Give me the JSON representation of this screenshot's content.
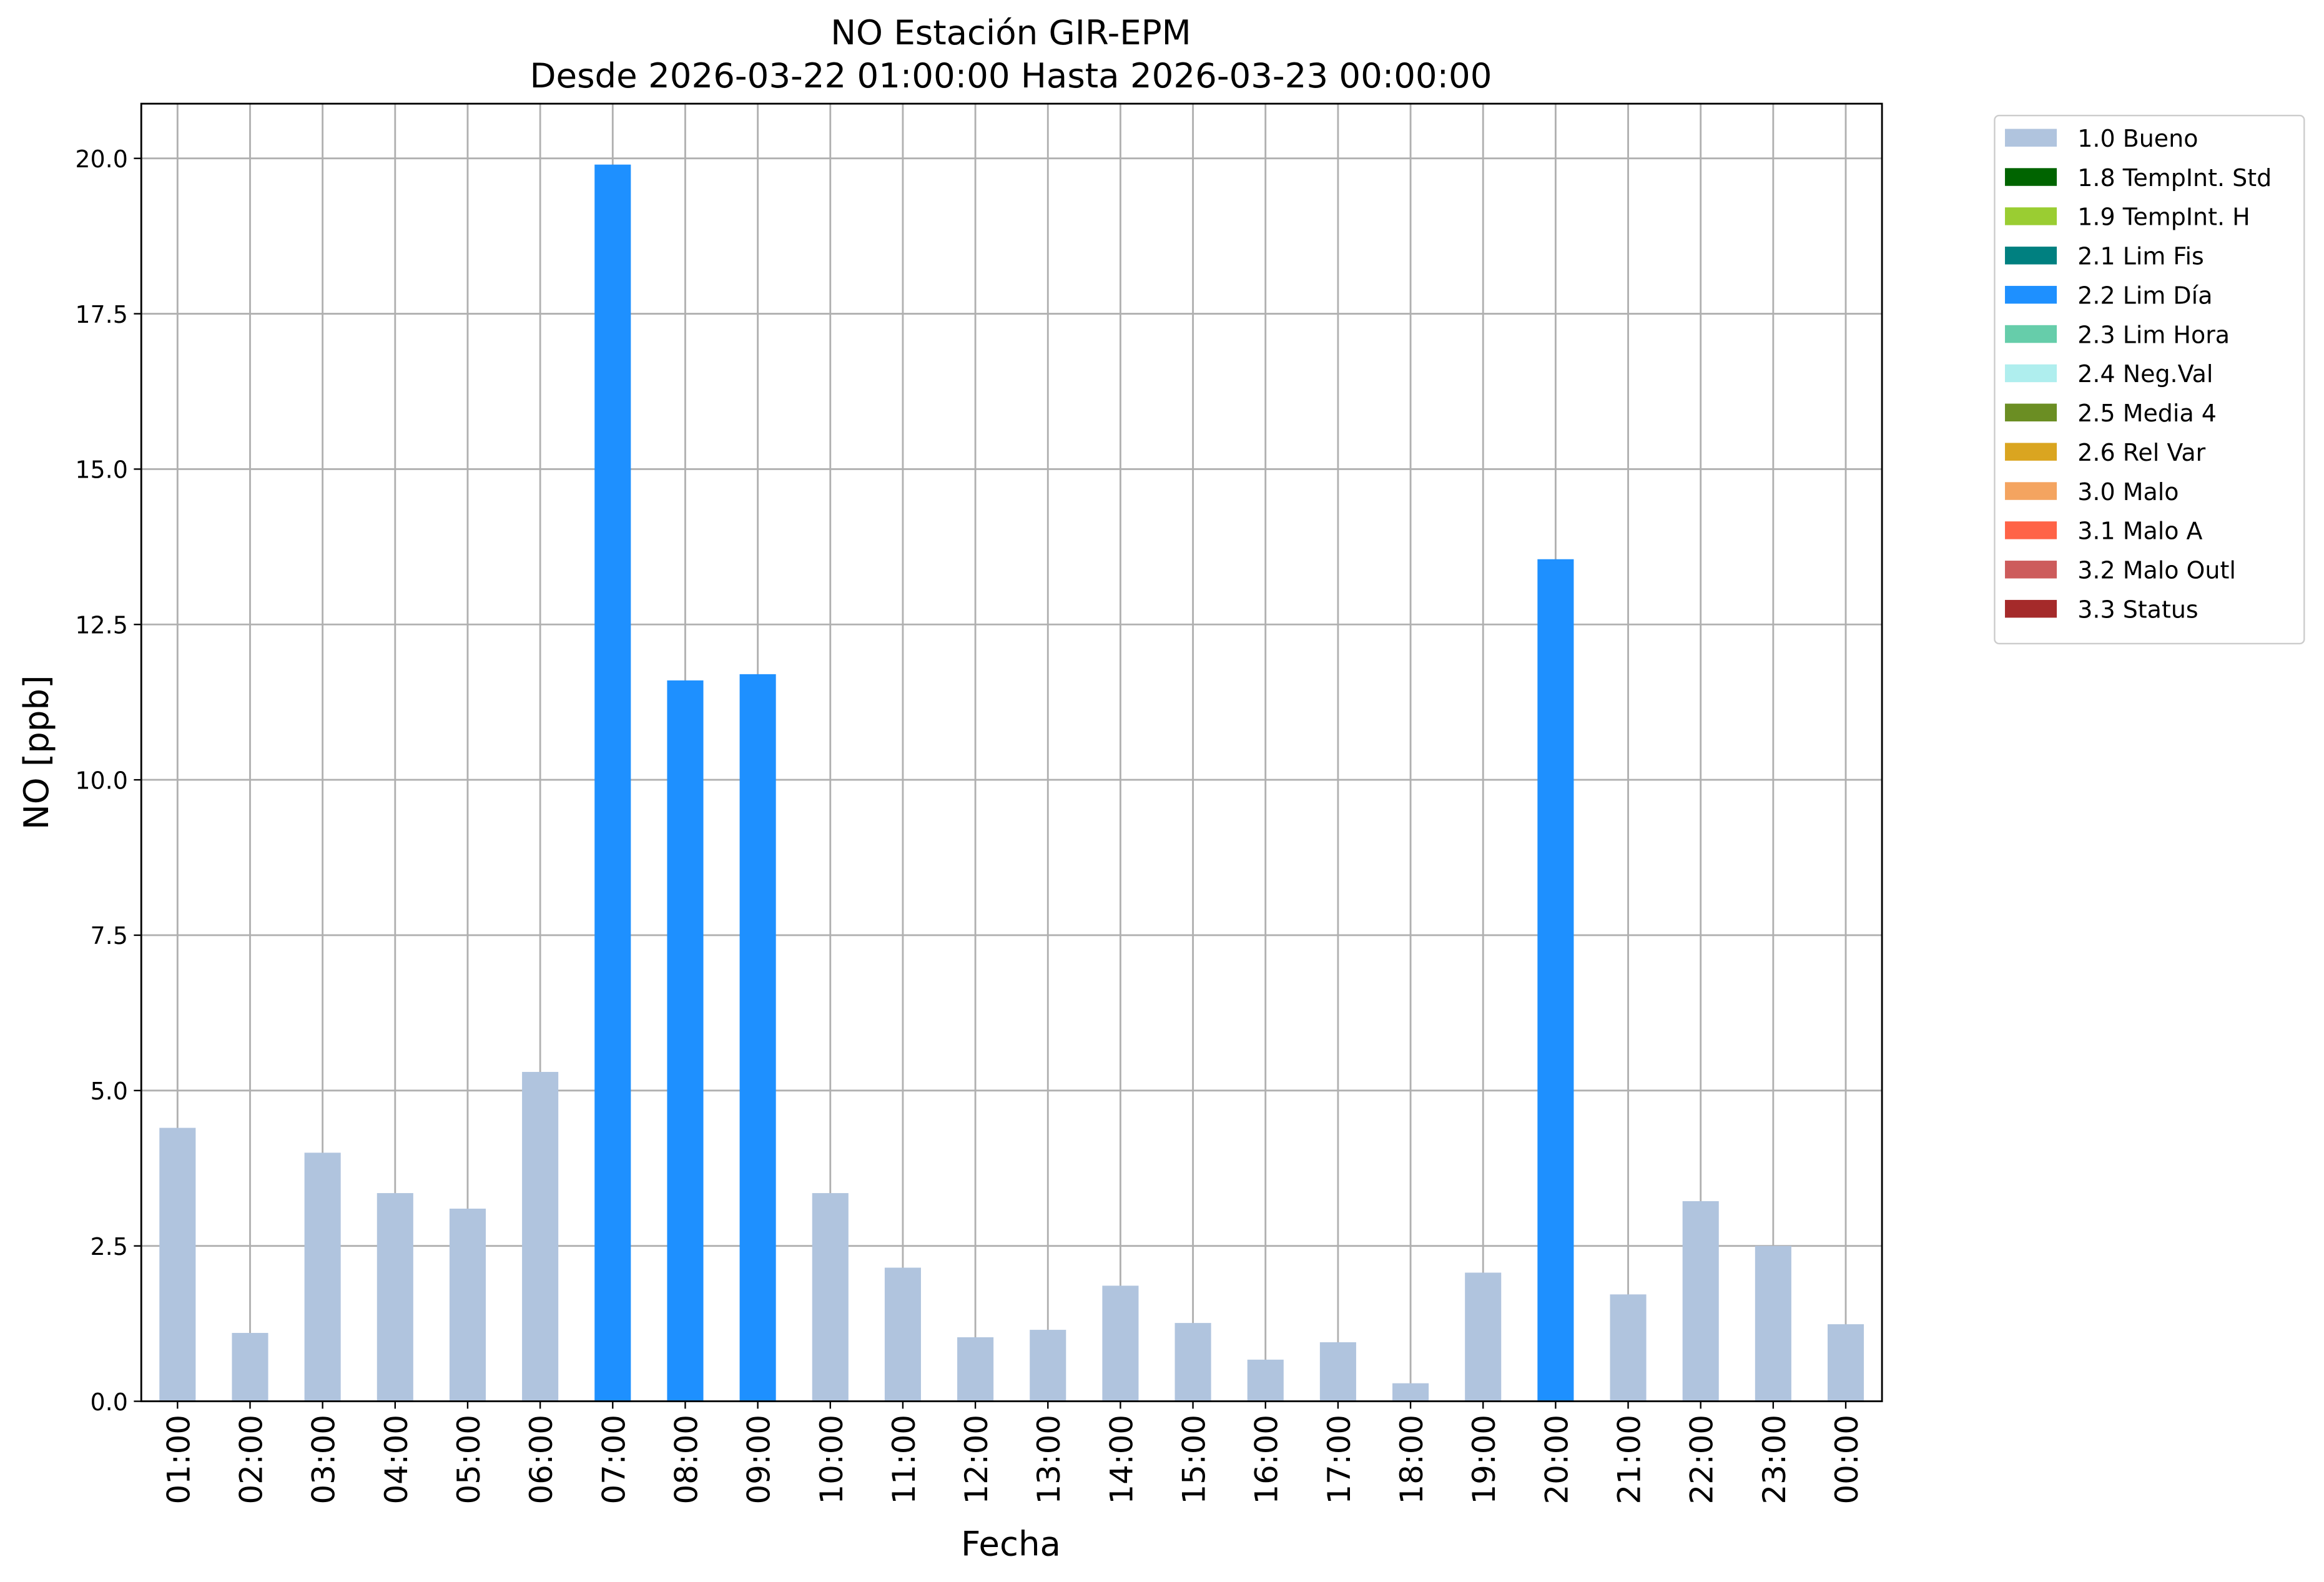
{
  "chart_data": {
    "type": "stacked_bar",
    "title": "NO Estación GIR-EPM",
    "subtitle": "Desde 2026-03-22 01:00:00 Hasta 2026-03-23 00:00:00",
    "x_label": "Fecha",
    "y_label": "NO [ppb]",
    "categories": [
      "01:00",
      "02:00",
      "03:00",
      "04:00",
      "05:00",
      "06:00",
      "07:00",
      "08:00",
      "09:00",
      "10:00",
      "11:00",
      "12:00",
      "13:00",
      "14:00",
      "15:00",
      "16:00",
      "17:00",
      "18:00",
      "19:00",
      "20:00",
      "21:00",
      "22:00",
      "23:00",
      "00:00"
    ],
    "series": [
      {
        "name": "1.0 Bueno",
        "color": "#b0c4de",
        "values": [
          4.4,
          1.1,
          4.0,
          3.35,
          3.1,
          5.3,
          null,
          null,
          null,
          3.35,
          2.15,
          1.03,
          1.15,
          1.86,
          1.26,
          0.67,
          0.95,
          0.29,
          2.07,
          null,
          1.72,
          3.22,
          2.5,
          1.24
        ]
      },
      {
        "name": "1.8 TempInt. Std",
        "color": "#006400",
        "values": [
          null,
          null,
          null,
          null,
          null,
          null,
          null,
          null,
          null,
          null,
          null,
          null,
          null,
          null,
          null,
          null,
          null,
          null,
          null,
          null,
          null,
          null,
          null,
          null
        ]
      },
      {
        "name": "1.9 TempInt. H",
        "color": "#9acd32",
        "values": [
          null,
          null,
          null,
          null,
          null,
          null,
          null,
          null,
          null,
          null,
          null,
          null,
          null,
          null,
          null,
          null,
          null,
          null,
          null,
          null,
          null,
          null,
          null,
          null
        ]
      },
      {
        "name": "2.1 Lim Fis",
        "color": "#008080",
        "values": [
          null,
          null,
          null,
          null,
          null,
          null,
          null,
          null,
          null,
          null,
          null,
          null,
          null,
          null,
          null,
          null,
          null,
          null,
          null,
          null,
          null,
          null,
          null,
          null
        ]
      },
      {
        "name": "2.2 Lim Día",
        "color": "#1e90ff",
        "values": [
          null,
          null,
          null,
          null,
          null,
          null,
          19.9,
          11.6,
          11.7,
          null,
          null,
          null,
          null,
          null,
          null,
          null,
          null,
          null,
          null,
          13.55,
          null,
          null,
          null,
          null
        ]
      },
      {
        "name": "2.3 Lim Hora",
        "color": "#66cdaa",
        "values": [
          null,
          null,
          null,
          null,
          null,
          null,
          null,
          null,
          null,
          null,
          null,
          null,
          null,
          null,
          null,
          null,
          null,
          null,
          null,
          null,
          null,
          null,
          null,
          null
        ]
      },
      {
        "name": "2.4 Neg.Val",
        "color": "#afeeee",
        "values": [
          null,
          null,
          null,
          null,
          null,
          null,
          null,
          null,
          null,
          null,
          null,
          null,
          null,
          null,
          null,
          null,
          null,
          null,
          null,
          null,
          null,
          null,
          null,
          null
        ]
      },
      {
        "name": "2.5 Media 4",
        "color": "#6b8e23",
        "values": [
          null,
          null,
          null,
          null,
          null,
          null,
          null,
          null,
          null,
          null,
          null,
          null,
          null,
          null,
          null,
          null,
          null,
          null,
          null,
          null,
          null,
          null,
          null,
          null
        ]
      },
      {
        "name": "2.6 Rel Var",
        "color": "#daa520",
        "values": [
          null,
          null,
          null,
          null,
          null,
          null,
          null,
          null,
          null,
          null,
          null,
          null,
          null,
          null,
          null,
          null,
          null,
          null,
          null,
          null,
          null,
          null,
          null,
          null
        ]
      },
      {
        "name": "3.0 Malo",
        "color": "#f4a460",
        "values": [
          null,
          null,
          null,
          null,
          null,
          null,
          null,
          null,
          null,
          null,
          null,
          null,
          null,
          null,
          null,
          null,
          null,
          null,
          null,
          null,
          null,
          null,
          null,
          null
        ]
      },
      {
        "name": "3.1 Malo A",
        "color": "#ff6347",
        "values": [
          null,
          null,
          null,
          null,
          null,
          null,
          null,
          null,
          null,
          null,
          null,
          null,
          null,
          null,
          null,
          null,
          null,
          null,
          null,
          null,
          null,
          null,
          null,
          null
        ]
      },
      {
        "name": "3.2 Malo Outl",
        "color": "#cd5c5c",
        "values": [
          null,
          null,
          null,
          null,
          null,
          null,
          null,
          null,
          null,
          null,
          null,
          null,
          null,
          null,
          null,
          null,
          null,
          null,
          null,
          null,
          null,
          null,
          null,
          null
        ]
      },
      {
        "name": "3.3 Status",
        "color": "#a52a2a",
        "values": [
          null,
          null,
          null,
          null,
          null,
          null,
          null,
          null,
          null,
          null,
          null,
          null,
          null,
          null,
          null,
          null,
          null,
          null,
          null,
          null,
          null,
          null,
          null,
          null
        ]
      }
    ],
    "ylim": [
      0,
      20.88
    ],
    "yticks": [
      {
        "value": 0,
        "label": "0.0"
      },
      2.5,
      {
        "value": 5,
        "label": "5.0"
      },
      7.5,
      {
        "value": 10,
        "label": "10.0"
      },
      12.5,
      {
        "value": 15,
        "label": "15.0"
      },
      17.5,
      {
        "value": 20,
        "label": "20.0"
      }
    ],
    "grid": true,
    "legend": "outside-right"
  }
}
